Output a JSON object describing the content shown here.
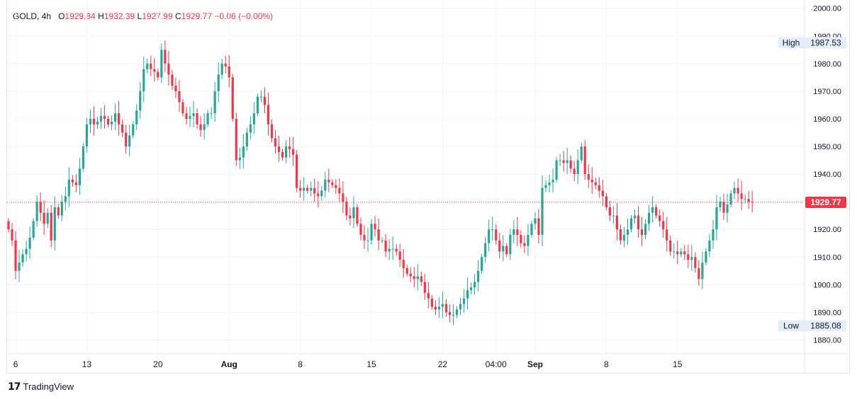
{
  "header": {
    "symbol": "GOLD, 4h",
    "open_label": "O",
    "open": "1929.84",
    "high_label": "H",
    "high": "1932.39",
    "low_label": "L",
    "low": "1927.99",
    "close_label": "C",
    "close": "1929.77",
    "change": "−0.06 (−0.00%)"
  },
  "footer": {
    "brand": "TradingView"
  },
  "colors": {
    "up": "#26a69a",
    "down": "#f23645",
    "grid": "#f0f3fa",
    "price_line": "#f23645",
    "axis_text": "#131722"
  },
  "chart_data": {
    "type": "candlestick",
    "title": "GOLD, 4h",
    "xlabel": "",
    "ylabel": "",
    "ylim": [
      1875,
      2003
    ],
    "yticks": [
      "2000.00",
      "1990.00",
      "1980.00",
      "1970.00",
      "1960.00",
      "1950.00",
      "1940.00",
      "1930.00",
      "1920.00",
      "1910.00",
      "1900.00",
      "1890.00",
      "1880.00"
    ],
    "y_tick_values": [
      2000,
      1990,
      1980,
      1970,
      1960,
      1950,
      1940,
      1930,
      1920,
      1910,
      1900,
      1890,
      1880
    ],
    "xticks": [
      {
        "label": "6",
        "index": 2,
        "bold": false
      },
      {
        "label": "13",
        "index": 22,
        "bold": false
      },
      {
        "label": "20",
        "index": 42,
        "bold": false
      },
      {
        "label": "Aug",
        "index": 62,
        "bold": true
      },
      {
        "label": "8",
        "index": 82,
        "bold": false
      },
      {
        "label": "15",
        "index": 102,
        "bold": false
      },
      {
        "label": "22",
        "index": 122,
        "bold": false
      },
      {
        "label": "04:00",
        "index": 137,
        "bold": false
      },
      {
        "label": "Sep",
        "index": 148,
        "bold": true
      },
      {
        "label": "8",
        "index": 168,
        "bold": false
      },
      {
        "label": "15",
        "index": 188,
        "bold": false
      }
    ],
    "grid": true,
    "current_price": {
      "label": "1929.77",
      "value": 1929.77
    },
    "high_marker": {
      "label": "High",
      "value": "1987.53"
    },
    "low_marker": {
      "label": "Low",
      "value": "1885.08"
    },
    "closes": [
      1920,
      1916,
      1905,
      1908,
      1911,
      1913,
      1917,
      1923,
      1930,
      1926,
      1922,
      1926,
      1916,
      1928,
      1925,
      1930,
      1932,
      1938,
      1937,
      1936,
      1942,
      1950,
      1958,
      1960,
      1958,
      1959,
      1961,
      1960,
      1958,
      1959,
      1962,
      1958,
      1955,
      1950,
      1954,
      1958,
      1963,
      1970,
      1978,
      1980,
      1978,
      1977,
      1975,
      1985,
      1980,
      1976,
      1972,
      1970,
      1966,
      1962,
      1960,
      1961,
      1962,
      1958,
      1956,
      1958,
      1962,
      1962,
      1970,
      1976,
      1980,
      1979,
      1975,
      1960,
      1945,
      1946,
      1950,
      1955,
      1958,
      1962,
      1968,
      1968,
      1965,
      1958,
      1953,
      1950,
      1948,
      1946,
      1950,
      1949,
      1947,
      1935,
      1934,
      1935,
      1934,
      1935,
      1933,
      1932,
      1934,
      1938,
      1937,
      1936,
      1935,
      1933,
      1930,
      1925,
      1924,
      1928,
      1922,
      1918,
      1916,
      1916,
      1922,
      1920,
      1916,
      1916,
      1912,
      1913,
      1913,
      1912,
      1909,
      1906,
      1904,
      1903,
      1902,
      1903,
      1901,
      1897,
      1895,
      1892,
      1891,
      1892,
      1893,
      1890,
      1889,
      1889,
      1891,
      1893,
      1895,
      1898,
      1899,
      1901,
      1905,
      1910,
      1915,
      1920,
      1920,
      1916,
      1912,
      1914,
      1911,
      1918,
      1920,
      1918,
      1915,
      1914,
      1918,
      1922,
      1924,
      1918,
      1935,
      1936,
      1937,
      1938,
      1945,
      1945,
      1944,
      1945,
      1942,
      1940,
      1945,
      1950,
      1940,
      1938,
      1937,
      1936,
      1934,
      1932,
      1928,
      1925,
      1925,
      1920,
      1916,
      1918,
      1920,
      1924,
      1925,
      1920,
      1918,
      1922,
      1926,
      1928,
      1925,
      1923,
      1920,
      1916,
      1912,
      1912,
      1911,
      1912,
      1911,
      1909,
      1910,
      1906,
      1902,
      1908,
      1912,
      1916,
      1920,
      1928,
      1930,
      1926,
      1929,
      1933,
      1935,
      1933,
      1931,
      1931,
      1930,
      1929.77
    ]
  }
}
